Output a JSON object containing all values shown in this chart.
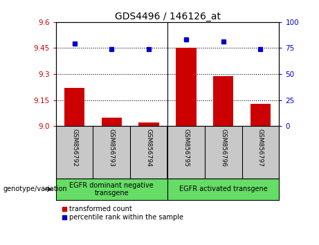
{
  "title": "GDS4496 / 146126_at",
  "samples": [
    "GSM856792",
    "GSM856793",
    "GSM856794",
    "GSM856795",
    "GSM856796",
    "GSM856797"
  ],
  "red_values": [
    9.22,
    9.05,
    9.02,
    9.45,
    9.29,
    9.13
  ],
  "blue_values": [
    79,
    74,
    74,
    83,
    81,
    74
  ],
  "ylim_left": [
    9.0,
    9.6
  ],
  "ylim_right": [
    0,
    100
  ],
  "yticks_left": [
    9.0,
    9.15,
    9.3,
    9.45,
    9.6
  ],
  "yticks_right": [
    0,
    25,
    50,
    75,
    100
  ],
  "hlines": [
    9.15,
    9.3,
    9.45
  ],
  "bar_color": "#CC0000",
  "dot_color": "#0000CC",
  "bar_width": 0.55,
  "left_tick_color": "#CC0000",
  "right_tick_color": "#0000CC",
  "bg_color": "#FFFFFF",
  "sample_box_color": "#C8C8C8",
  "group_box_color": "#66DD66",
  "legend_red_label": "transformed count",
  "legend_blue_label": "percentile rank within the sample",
  "genotype_label": "genotype/variation",
  "group1_label": "EGFR dominant negative\ntransgene",
  "group2_label": "EGFR activated transgene"
}
